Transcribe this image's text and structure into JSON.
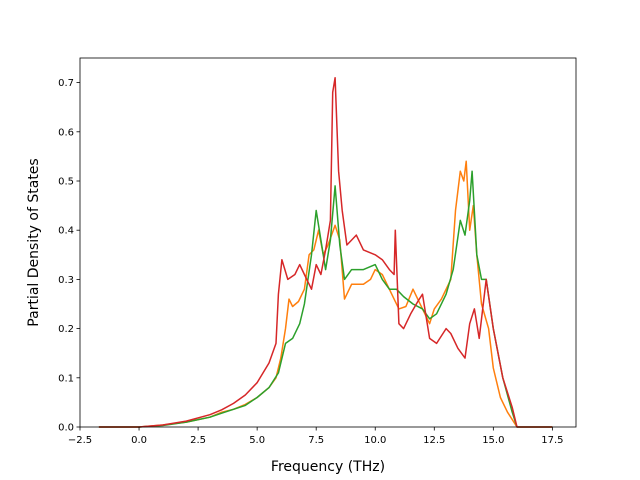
{
  "chart_data": {
    "type": "line",
    "title": "",
    "xlabel": "Frequency (THz)",
    "ylabel": "Partial Density of States",
    "xlim": [
      -2.5,
      18.5
    ],
    "ylim": [
      0.0,
      0.75
    ],
    "xticks": [
      -2.5,
      0.0,
      2.5,
      5.0,
      7.5,
      10.0,
      12.5,
      15.0,
      17.5
    ],
    "xtick_labels": [
      "−2.5",
      "0.0",
      "2.5",
      "5.0",
      "7.5",
      "10.0",
      "12.5",
      "15.0",
      "17.5"
    ],
    "yticks": [
      0.0,
      0.1,
      0.2,
      0.3,
      0.4,
      0.5,
      0.6,
      0.7
    ],
    "ytick_labels": [
      "0.0",
      "0.1",
      "0.2",
      "0.3",
      "0.4",
      "0.5",
      "0.6",
      "0.7"
    ],
    "grid": false,
    "legend": false,
    "series": [
      {
        "color": "#ff7f0e",
        "points": [
          [
            -1.7,
            0.0
          ],
          [
            0.0,
            0.0
          ],
          [
            1.0,
            0.004
          ],
          [
            2.0,
            0.01
          ],
          [
            3.0,
            0.02
          ],
          [
            3.5,
            0.03
          ],
          [
            4.0,
            0.036
          ],
          [
            4.5,
            0.046
          ],
          [
            5.0,
            0.06
          ],
          [
            5.5,
            0.08
          ],
          [
            5.8,
            0.1
          ],
          [
            6.0,
            0.14
          ],
          [
            6.2,
            0.2
          ],
          [
            6.35,
            0.26
          ],
          [
            6.5,
            0.245
          ],
          [
            6.75,
            0.255
          ],
          [
            7.0,
            0.28
          ],
          [
            7.2,
            0.35
          ],
          [
            7.4,
            0.36
          ],
          [
            7.6,
            0.4
          ],
          [
            7.8,
            0.35
          ],
          [
            8.0,
            0.37
          ],
          [
            8.3,
            0.41
          ],
          [
            8.5,
            0.38
          ],
          [
            8.7,
            0.26
          ],
          [
            9.0,
            0.29
          ],
          [
            9.5,
            0.29
          ],
          [
            9.8,
            0.3
          ],
          [
            10.0,
            0.32
          ],
          [
            10.3,
            0.31
          ],
          [
            10.5,
            0.29
          ],
          [
            10.8,
            0.26
          ],
          [
            11.0,
            0.24
          ],
          [
            11.3,
            0.245
          ],
          [
            11.6,
            0.28
          ],
          [
            12.0,
            0.24
          ],
          [
            12.3,
            0.21
          ],
          [
            12.5,
            0.24
          ],
          [
            12.8,
            0.26
          ],
          [
            13.2,
            0.3
          ],
          [
            13.4,
            0.44
          ],
          [
            13.6,
            0.52
          ],
          [
            13.75,
            0.5
          ],
          [
            13.85,
            0.54
          ],
          [
            14.0,
            0.4
          ],
          [
            14.15,
            0.45
          ],
          [
            14.3,
            0.35
          ],
          [
            14.5,
            0.25
          ],
          [
            14.8,
            0.2
          ],
          [
            15.0,
            0.12
          ],
          [
            15.3,
            0.06
          ],
          [
            15.6,
            0.03
          ],
          [
            16.0,
            0.0
          ],
          [
            17.5,
            0.0
          ]
        ]
      },
      {
        "color": "#2ca02c",
        "points": [
          [
            -1.7,
            0.0
          ],
          [
            0.0,
            0.0
          ],
          [
            1.0,
            0.003
          ],
          [
            2.0,
            0.01
          ],
          [
            3.0,
            0.02
          ],
          [
            3.5,
            0.028
          ],
          [
            4.0,
            0.036
          ],
          [
            4.5,
            0.044
          ],
          [
            5.0,
            0.06
          ],
          [
            5.5,
            0.08
          ],
          [
            5.9,
            0.11
          ],
          [
            6.2,
            0.17
          ],
          [
            6.5,
            0.18
          ],
          [
            6.8,
            0.21
          ],
          [
            7.0,
            0.25
          ],
          [
            7.3,
            0.35
          ],
          [
            7.5,
            0.44
          ],
          [
            7.7,
            0.38
          ],
          [
            7.9,
            0.32
          ],
          [
            8.1,
            0.38
          ],
          [
            8.3,
            0.49
          ],
          [
            8.5,
            0.37
          ],
          [
            8.7,
            0.3
          ],
          [
            9.0,
            0.32
          ],
          [
            9.5,
            0.32
          ],
          [
            10.0,
            0.33
          ],
          [
            10.3,
            0.3
          ],
          [
            10.6,
            0.28
          ],
          [
            10.9,
            0.28
          ],
          [
            11.2,
            0.265
          ],
          [
            11.6,
            0.25
          ],
          [
            12.0,
            0.24
          ],
          [
            12.3,
            0.22
          ],
          [
            12.6,
            0.23
          ],
          [
            13.0,
            0.27
          ],
          [
            13.3,
            0.32
          ],
          [
            13.6,
            0.42
          ],
          [
            13.8,
            0.39
          ],
          [
            14.0,
            0.46
          ],
          [
            14.1,
            0.52
          ],
          [
            14.3,
            0.35
          ],
          [
            14.5,
            0.3
          ],
          [
            14.7,
            0.3
          ],
          [
            15.0,
            0.2
          ],
          [
            15.4,
            0.1
          ],
          [
            15.8,
            0.03
          ],
          [
            16.0,
            0.0
          ],
          [
            17.5,
            0.0
          ]
        ]
      },
      {
        "color": "#d62728",
        "points": [
          [
            -1.7,
            0.0
          ],
          [
            0.0,
            0.0
          ],
          [
            1.0,
            0.004
          ],
          [
            2.0,
            0.012
          ],
          [
            3.0,
            0.025
          ],
          [
            3.5,
            0.035
          ],
          [
            4.0,
            0.048
          ],
          [
            4.5,
            0.065
          ],
          [
            5.0,
            0.09
          ],
          [
            5.5,
            0.13
          ],
          [
            5.8,
            0.17
          ],
          [
            5.9,
            0.27
          ],
          [
            6.05,
            0.34
          ],
          [
            6.3,
            0.3
          ],
          [
            6.6,
            0.31
          ],
          [
            6.8,
            0.33
          ],
          [
            7.0,
            0.31
          ],
          [
            7.3,
            0.28
          ],
          [
            7.5,
            0.33
          ],
          [
            7.7,
            0.31
          ],
          [
            7.9,
            0.36
          ],
          [
            8.1,
            0.42
          ],
          [
            8.2,
            0.68
          ],
          [
            8.3,
            0.71
          ],
          [
            8.45,
            0.52
          ],
          [
            8.6,
            0.44
          ],
          [
            8.8,
            0.37
          ],
          [
            9.2,
            0.39
          ],
          [
            9.5,
            0.36
          ],
          [
            10.0,
            0.35
          ],
          [
            10.3,
            0.34
          ],
          [
            10.6,
            0.32
          ],
          [
            10.8,
            0.31
          ],
          [
            10.85,
            0.4
          ],
          [
            11.0,
            0.21
          ],
          [
            11.2,
            0.2
          ],
          [
            11.5,
            0.23
          ],
          [
            11.8,
            0.255
          ],
          [
            12.0,
            0.27
          ],
          [
            12.3,
            0.18
          ],
          [
            12.6,
            0.17
          ],
          [
            13.0,
            0.2
          ],
          [
            13.2,
            0.19
          ],
          [
            13.5,
            0.16
          ],
          [
            13.8,
            0.14
          ],
          [
            14.0,
            0.21
          ],
          [
            14.2,
            0.24
          ],
          [
            14.4,
            0.18
          ],
          [
            14.7,
            0.3
          ],
          [
            15.0,
            0.2
          ],
          [
            15.4,
            0.1
          ],
          [
            15.8,
            0.04
          ],
          [
            16.0,
            0.0
          ],
          [
            17.5,
            0.0
          ]
        ]
      }
    ]
  }
}
